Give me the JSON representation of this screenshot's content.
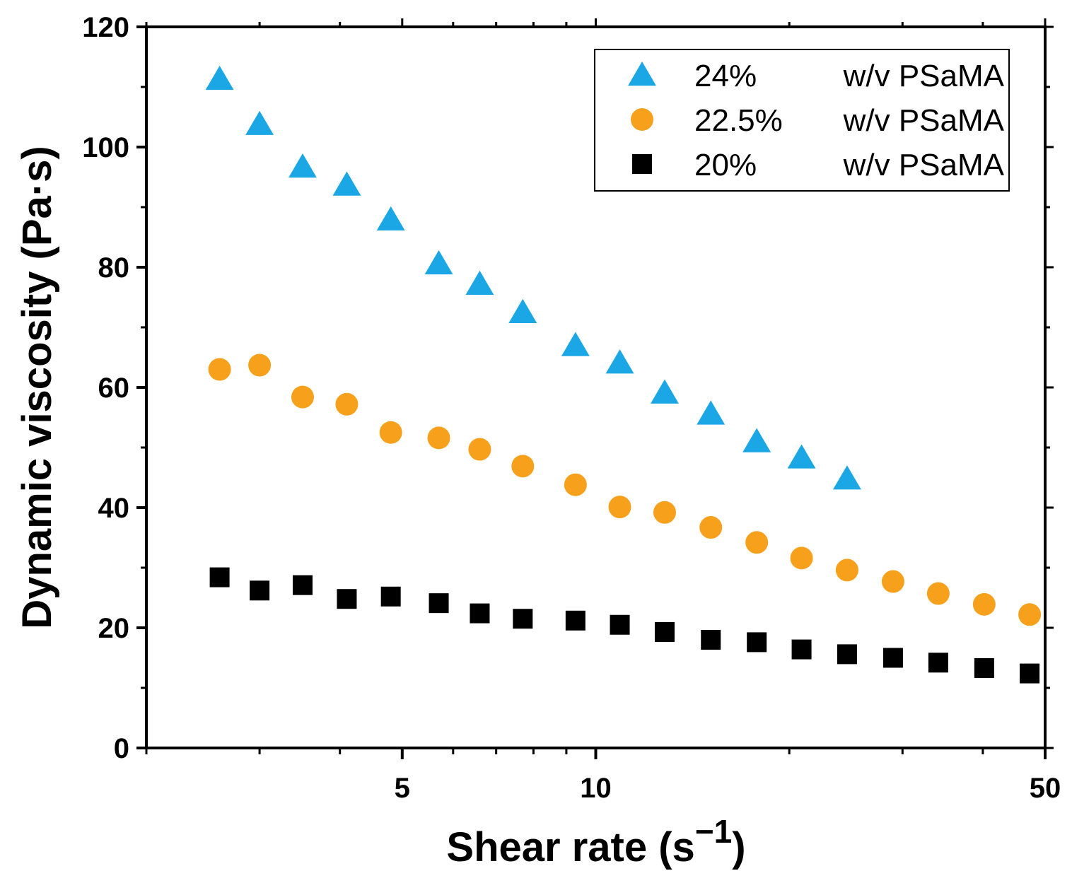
{
  "chart_data": {
    "type": "scatter",
    "title": "",
    "xlabel": "Shear rate (s",
    "xlabel_superscript": "−1",
    "xlabel_close": ")",
    "ylabel": "Dynamic viscosity (Pa·s)",
    "xscale": "log",
    "xlim": [
      2,
      50
    ],
    "ylim": [
      0,
      120
    ],
    "x_ticks": [
      5,
      10,
      50
    ],
    "x_tick_labels": [
      "5",
      "10",
      "50"
    ],
    "x_minor_ticks": [
      2,
      3,
      4,
      6,
      7,
      8,
      9,
      20,
      30,
      40
    ],
    "y_ticks": [
      0,
      20,
      40,
      60,
      80,
      100,
      120
    ],
    "y_tick_labels": [
      "0",
      "20",
      "40",
      "60",
      "80",
      "100",
      "120"
    ],
    "legend_position": "top-right",
    "series": [
      {
        "name": "24%",
        "name_suffix": "w/v PSaMA",
        "marker": "triangle",
        "color": "#1ba7e6",
        "x": [
          2.6,
          3.0,
          3.5,
          4.1,
          4.8,
          5.7,
          6.6,
          7.7,
          9.3,
          10.9,
          12.8,
          15.1,
          17.8,
          20.9,
          24.6
        ],
        "y": [
          111.3,
          103.8,
          96.7,
          93.7,
          87.9,
          80.6,
          77.2,
          72.5,
          67.0,
          64.1,
          59.1,
          55.6,
          51.0,
          48.3,
          44.8
        ]
      },
      {
        "name": "22.5%",
        "name_suffix": "w/v PSaMA",
        "marker": "circle",
        "color": "#f7a01c",
        "x": [
          2.6,
          3.0,
          3.5,
          4.1,
          4.8,
          5.7,
          6.6,
          7.7,
          9.3,
          10.9,
          12.8,
          15.1,
          17.8,
          20.9,
          24.6,
          29.0,
          34.1,
          40.2,
          47.3
        ],
        "y": [
          63.0,
          63.7,
          58.4,
          57.2,
          52.5,
          51.6,
          49.7,
          46.9,
          43.8,
          40.1,
          39.2,
          36.7,
          34.2,
          31.6,
          29.6,
          27.7,
          25.7,
          23.9,
          22.2
        ]
      },
      {
        "name": "20%",
        "name_suffix": "w/v PSaMA",
        "marker": "square",
        "color": "#000000",
        "x": [
          2.6,
          3.0,
          3.5,
          4.1,
          4.8,
          5.7,
          6.6,
          7.7,
          9.3,
          10.9,
          12.8,
          15.1,
          17.8,
          20.9,
          24.6,
          29.0,
          34.1,
          40.2,
          47.3
        ],
        "y": [
          28.4,
          26.2,
          27.1,
          24.8,
          25.2,
          24.1,
          22.4,
          21.5,
          21.2,
          20.5,
          19.3,
          18.0,
          17.6,
          16.4,
          15.6,
          15.0,
          14.2,
          13.3,
          12.4
        ]
      }
    ]
  }
}
